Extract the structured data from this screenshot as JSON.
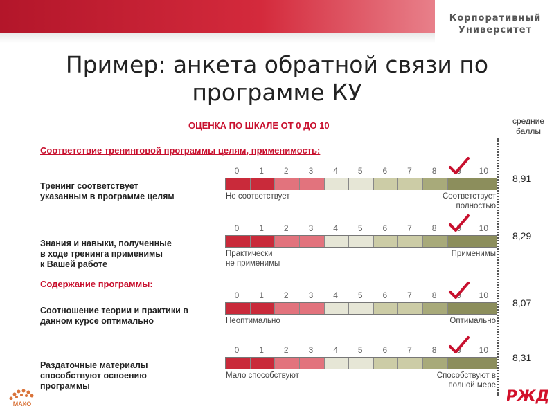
{
  "brand": {
    "line1": "Корпоративный",
    "line2": "Университет"
  },
  "title": {
    "line1": "Пример: анкета обратной связи по",
    "line2": "программе КУ"
  },
  "scale_title": "ОЦЕНКА ПО ШКАЛЕ ОТ 0 ДО 10",
  "avg_header": {
    "line1": "средние",
    "line2": "баллы"
  },
  "sections": [
    {
      "label": "Соответствие тренинговой программы целям, применимость:"
    },
    {
      "label": "Содержание программы:"
    }
  ],
  "scale_numbers": [
    "0",
    "1",
    "2",
    "3",
    "4",
    "5",
    "6",
    "7",
    "8",
    "9",
    "10"
  ],
  "segment_colors": [
    "#c92a3a",
    "#c92a3a",
    "#e2737d",
    "#e2737d",
    "#e6e6d6",
    "#e6e6d6",
    "#cccca6",
    "#cccca6",
    "#a8aa7a",
    "#8c8e5c",
    "#8c8e5c"
  ],
  "check_color": "#c8102e",
  "items": [
    {
      "question": [
        "Тренинг соответствует",
        "указанным в программе целям"
      ],
      "left_label": [
        "Не соответствует"
      ],
      "right_label": [
        "Соответствует",
        "полностью"
      ],
      "score": "8,91",
      "checked": 9
    },
    {
      "question": [
        "Знания и навыки, полученные",
        "в ходе тренинга применимы",
        "к Вашей работе"
      ],
      "left_label": [
        "Практически",
        "не применимы"
      ],
      "right_label": [
        "Применимы"
      ],
      "score": "8,29",
      "checked": 9
    },
    {
      "question": [
        "Соотношение теории и практики в",
        "данном курсе оптимально"
      ],
      "left_label": [
        "Неоптимально"
      ],
      "right_label": [
        "Оптимально"
      ],
      "score": "8,07",
      "checked": 9
    },
    {
      "question": [
        "Раздаточные материалы",
        "способствуют освоению",
        "программы"
      ],
      "left_label": [
        "Мало способствуют"
      ],
      "right_label": [
        "Способствуют в",
        "полной мере"
      ],
      "score": "8,31",
      "checked": 9
    }
  ],
  "logos": {
    "left": "МАКО",
    "right": "РЖД"
  }
}
